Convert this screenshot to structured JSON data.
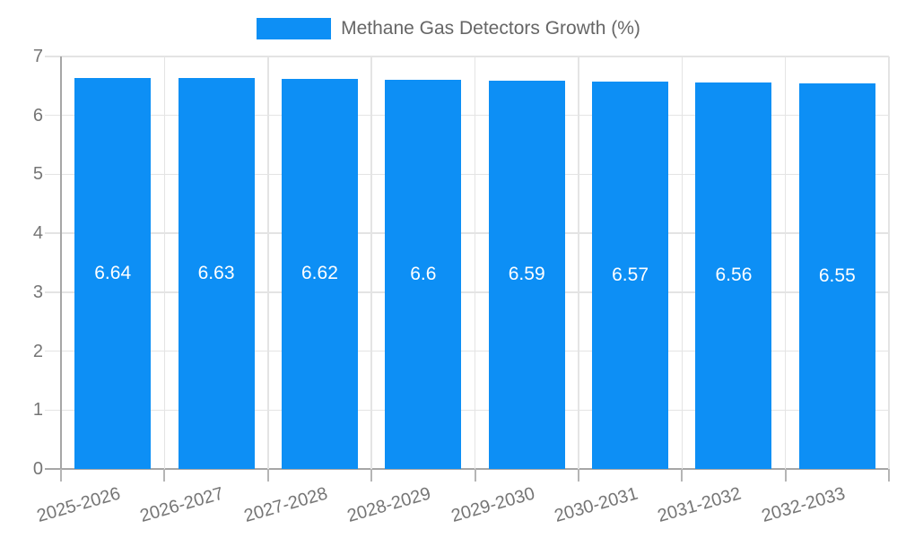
{
  "chart_data": {
    "type": "bar",
    "title": "",
    "legend_label": "Methane Gas Detectors Growth (%)",
    "legend_position": "top-center",
    "categories": [
      "2025-2026",
      "2026-2027",
      "2027-2028",
      "2028-2029",
      "2029-2030",
      "2030-2031",
      "2031-2032",
      "2032-2033"
    ],
    "series": [
      {
        "name": "Methane Gas Detectors Growth (%)",
        "values": [
          6.64,
          6.63,
          6.62,
          6.6,
          6.59,
          6.57,
          6.56,
          6.55
        ]
      }
    ],
    "value_labels": [
      "6.64",
      "6.63",
      "6.62",
      "6.6",
      "6.59",
      "6.57",
      "6.56",
      "6.55"
    ],
    "value_label_position": "inside-center",
    "xlabel": "",
    "ylabel": "",
    "ylim": [
      0,
      7
    ],
    "yticks": [
      0,
      1,
      2,
      3,
      4,
      5,
      6,
      7
    ],
    "grid": true,
    "x_tick_rotation_deg": -16,
    "colors": {
      "bar": "#0d8ff5",
      "bar_value_label": "#ffffff",
      "grid_line": "#e4e4e4",
      "axis_line": "#a6a6a6",
      "tick_mark": "#b5b5b5",
      "tick_label": "#757575",
      "legend_text": "#666666",
      "background": "#ffffff"
    }
  }
}
